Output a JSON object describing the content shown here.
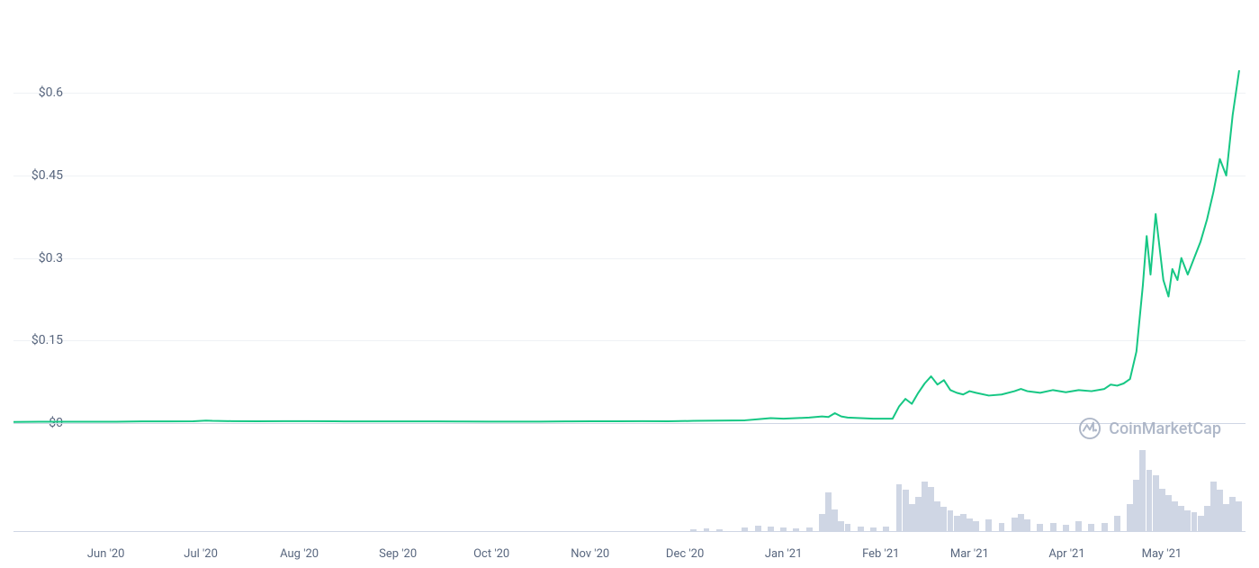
{
  "chart": {
    "type": "line",
    "background_color": "#ffffff",
    "grid_color": "#eff2f5",
    "line_color": "#16c784",
    "line_width": 2,
    "volume_bar_color": "#cfd6e4",
    "axis_label_color": "#58667e",
    "axis_label_fontsize": 14,
    "watermark_text": "CoinMarketCap",
    "watermark_color": "#a6b0c3",
    "y_axis": {
      "ticks": [
        {
          "value": 0,
          "label": "$0",
          "y_pct": 94.5
        },
        {
          "value": 0.15,
          "label": "$0.15",
          "y_pct": 73.6
        },
        {
          "value": 0.3,
          "label": "$0.3",
          "y_pct": 52.7
        },
        {
          "value": 0.45,
          "label": "$0.45",
          "y_pct": 31.8
        },
        {
          "value": 0.6,
          "label": "$0.6",
          "y_pct": 10.9
        }
      ]
    },
    "x_axis": {
      "ticks": [
        {
          "label": "Jun '20",
          "x_pct": 7.5
        },
        {
          "label": "Jul '20",
          "x_pct": 15.2
        },
        {
          "label": "Aug '20",
          "x_pct": 23.2
        },
        {
          "label": "Sep '20",
          "x_pct": 31.2
        },
        {
          "label": "Oct '20",
          "x_pct": 38.8
        },
        {
          "label": "Nov '20",
          "x_pct": 46.8
        },
        {
          "label": "Dec '20",
          "x_pct": 54.5
        },
        {
          "label": "Jan '21",
          "x_pct": 62.5
        },
        {
          "label": "Feb '21",
          "x_pct": 70.4
        },
        {
          "label": "Mar '21",
          "x_pct": 77.6
        },
        {
          "label": "Apr '21",
          "x_pct": 85.5
        },
        {
          "label": "May '21",
          "x_pct": 93.2
        }
      ]
    },
    "price_series": [
      {
        "x": 0,
        "y": 0.002
      },
      {
        "x": 2,
        "y": 0.0025
      },
      {
        "x": 4,
        "y": 0.0025
      },
      {
        "x": 6,
        "y": 0.0025
      },
      {
        "x": 8,
        "y": 0.0025
      },
      {
        "x": 10,
        "y": 0.003
      },
      {
        "x": 12,
        "y": 0.003
      },
      {
        "x": 14,
        "y": 0.0032
      },
      {
        "x": 15,
        "y": 0.0045
      },
      {
        "x": 15.5,
        "y": 0.004
      },
      {
        "x": 17,
        "y": 0.0035
      },
      {
        "x": 19,
        "y": 0.0032
      },
      {
        "x": 21,
        "y": 0.0035
      },
      {
        "x": 23,
        "y": 0.0035
      },
      {
        "x": 25,
        "y": 0.0032
      },
      {
        "x": 27,
        "y": 0.003
      },
      {
        "x": 29,
        "y": 0.003
      },
      {
        "x": 31,
        "y": 0.003
      },
      {
        "x": 33,
        "y": 0.003
      },
      {
        "x": 35,
        "y": 0.0028
      },
      {
        "x": 37,
        "y": 0.0027
      },
      {
        "x": 39,
        "y": 0.0026
      },
      {
        "x": 41,
        "y": 0.0027
      },
      {
        "x": 43,
        "y": 0.003
      },
      {
        "x": 45,
        "y": 0.0032
      },
      {
        "x": 47,
        "y": 0.0032
      },
      {
        "x": 49,
        "y": 0.0035
      },
      {
        "x": 51,
        "y": 0.0033
      },
      {
        "x": 53,
        "y": 0.004
      },
      {
        "x": 55,
        "y": 0.0045
      },
      {
        "x": 57,
        "y": 0.005
      },
      {
        "x": 58,
        "y": 0.007
      },
      {
        "x": 59,
        "y": 0.009
      },
      {
        "x": 60,
        "y": 0.008
      },
      {
        "x": 61,
        "y": 0.009
      },
      {
        "x": 62,
        "y": 0.01
      },
      {
        "x": 63,
        "y": 0.012
      },
      {
        "x": 63.5,
        "y": 0.011
      },
      {
        "x": 64,
        "y": 0.018
      },
      {
        "x": 64.5,
        "y": 0.012
      },
      {
        "x": 65,
        "y": 0.01
      },
      {
        "x": 66,
        "y": 0.009
      },
      {
        "x": 67,
        "y": 0.008
      },
      {
        "x": 68,
        "y": 0.008
      },
      {
        "x": 68.5,
        "y": 0.008
      },
      {
        "x": 69,
        "y": 0.03
      },
      {
        "x": 69.5,
        "y": 0.044
      },
      {
        "x": 70,
        "y": 0.035
      },
      {
        "x": 70.5,
        "y": 0.055
      },
      {
        "x": 71,
        "y": 0.072
      },
      {
        "x": 71.5,
        "y": 0.085
      },
      {
        "x": 72,
        "y": 0.07
      },
      {
        "x": 72.5,
        "y": 0.078
      },
      {
        "x": 73,
        "y": 0.06
      },
      {
        "x": 73.5,
        "y": 0.055
      },
      {
        "x": 74,
        "y": 0.052
      },
      {
        "x": 74.5,
        "y": 0.058
      },
      {
        "x": 75,
        "y": 0.055
      },
      {
        "x": 76,
        "y": 0.05
      },
      {
        "x": 77,
        "y": 0.052
      },
      {
        "x": 78,
        "y": 0.058
      },
      {
        "x": 78.5,
        "y": 0.062
      },
      {
        "x": 79,
        "y": 0.058
      },
      {
        "x": 80,
        "y": 0.055
      },
      {
        "x": 81,
        "y": 0.06
      },
      {
        "x": 82,
        "y": 0.056
      },
      {
        "x": 83,
        "y": 0.06
      },
      {
        "x": 84,
        "y": 0.058
      },
      {
        "x": 85,
        "y": 0.062
      },
      {
        "x": 85.5,
        "y": 0.07
      },
      {
        "x": 86,
        "y": 0.068
      },
      {
        "x": 86.5,
        "y": 0.072
      },
      {
        "x": 87,
        "y": 0.08
      },
      {
        "x": 87.5,
        "y": 0.13
      },
      {
        "x": 88,
        "y": 0.25
      },
      {
        "x": 88.3,
        "y": 0.34
      },
      {
        "x": 88.6,
        "y": 0.27
      },
      {
        "x": 89,
        "y": 0.38
      },
      {
        "x": 89.3,
        "y": 0.32
      },
      {
        "x": 89.6,
        "y": 0.26
      },
      {
        "x": 90,
        "y": 0.23
      },
      {
        "x": 90.3,
        "y": 0.28
      },
      {
        "x": 90.7,
        "y": 0.26
      },
      {
        "x": 91,
        "y": 0.3
      },
      {
        "x": 91.5,
        "y": 0.27
      },
      {
        "x": 92,
        "y": 0.3
      },
      {
        "x": 92.5,
        "y": 0.33
      },
      {
        "x": 93,
        "y": 0.37
      },
      {
        "x": 93.5,
        "y": 0.42
      },
      {
        "x": 94,
        "y": 0.48
      },
      {
        "x": 94.5,
        "y": 0.45
      },
      {
        "x": 95,
        "y": 0.56
      },
      {
        "x": 95.5,
        "y": 0.64
      }
    ],
    "volume_series": [
      {
        "x": 53,
        "h": 2
      },
      {
        "x": 54,
        "h": 3
      },
      {
        "x": 55,
        "h": 2
      },
      {
        "x": 57,
        "h": 4
      },
      {
        "x": 58,
        "h": 6
      },
      {
        "x": 59,
        "h": 5
      },
      {
        "x": 60,
        "h": 4
      },
      {
        "x": 61,
        "h": 3
      },
      {
        "x": 62,
        "h": 4
      },
      {
        "x": 63,
        "h": 20
      },
      {
        "x": 63.5,
        "h": 45
      },
      {
        "x": 64,
        "h": 25
      },
      {
        "x": 64.5,
        "h": 12
      },
      {
        "x": 65,
        "h": 8
      },
      {
        "x": 66,
        "h": 5
      },
      {
        "x": 67,
        "h": 4
      },
      {
        "x": 68,
        "h": 5
      },
      {
        "x": 69,
        "h": 55
      },
      {
        "x": 69.5,
        "h": 48
      },
      {
        "x": 70,
        "h": 32
      },
      {
        "x": 70.5,
        "h": 40
      },
      {
        "x": 71,
        "h": 58
      },
      {
        "x": 71.5,
        "h": 52
      },
      {
        "x": 72,
        "h": 35
      },
      {
        "x": 72.5,
        "h": 28
      },
      {
        "x": 73,
        "h": 24
      },
      {
        "x": 73.5,
        "h": 18
      },
      {
        "x": 74,
        "h": 20
      },
      {
        "x": 74.5,
        "h": 15
      },
      {
        "x": 75,
        "h": 12
      },
      {
        "x": 76,
        "h": 14
      },
      {
        "x": 77,
        "h": 10
      },
      {
        "x": 78,
        "h": 16
      },
      {
        "x": 78.5,
        "h": 20
      },
      {
        "x": 79,
        "h": 14
      },
      {
        "x": 80,
        "h": 8
      },
      {
        "x": 81,
        "h": 10
      },
      {
        "x": 82,
        "h": 7
      },
      {
        "x": 83,
        "h": 12
      },
      {
        "x": 84,
        "h": 8
      },
      {
        "x": 85,
        "h": 10
      },
      {
        "x": 86,
        "h": 18
      },
      {
        "x": 87,
        "h": 32
      },
      {
        "x": 87.5,
        "h": 60
      },
      {
        "x": 88,
        "h": 95
      },
      {
        "x": 88.5,
        "h": 72
      },
      {
        "x": 89,
        "h": 65
      },
      {
        "x": 89.5,
        "h": 50
      },
      {
        "x": 90,
        "h": 42
      },
      {
        "x": 90.5,
        "h": 35
      },
      {
        "x": 91,
        "h": 30
      },
      {
        "x": 91.5,
        "h": 24
      },
      {
        "x": 92,
        "h": 22
      },
      {
        "x": 92.5,
        "h": 18
      },
      {
        "x": 93,
        "h": 30
      },
      {
        "x": 93.5,
        "h": 58
      },
      {
        "x": 94,
        "h": 48
      },
      {
        "x": 94.5,
        "h": 32
      },
      {
        "x": 95,
        "h": 40
      },
      {
        "x": 95.5,
        "h": 35
      }
    ],
    "y_min": 0,
    "y_max": 0.72,
    "x_min": 0,
    "x_max": 96
  }
}
